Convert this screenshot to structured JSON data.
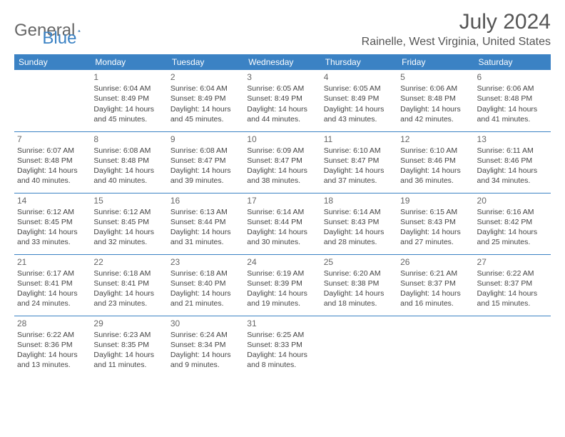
{
  "logo": {
    "general": "General",
    "blue": "Blue"
  },
  "title": "July 2024",
  "location": "Rainelle, West Virginia, United States",
  "colors": {
    "header_bg": "#3b82c4",
    "header_text": "#ffffff",
    "text": "#444444",
    "border": "#3b82c4",
    "logo_gray": "#666666",
    "logo_blue": "#3b82c4"
  },
  "weekdays": [
    "Sunday",
    "Monday",
    "Tuesday",
    "Wednesday",
    "Thursday",
    "Friday",
    "Saturday"
  ],
  "weeks": [
    [
      null,
      {
        "n": "1",
        "sr": "Sunrise: 6:04 AM",
        "ss": "Sunset: 8:49 PM",
        "d1": "Daylight: 14 hours",
        "d2": "and 45 minutes."
      },
      {
        "n": "2",
        "sr": "Sunrise: 6:04 AM",
        "ss": "Sunset: 8:49 PM",
        "d1": "Daylight: 14 hours",
        "d2": "and 45 minutes."
      },
      {
        "n": "3",
        "sr": "Sunrise: 6:05 AM",
        "ss": "Sunset: 8:49 PM",
        "d1": "Daylight: 14 hours",
        "d2": "and 44 minutes."
      },
      {
        "n": "4",
        "sr": "Sunrise: 6:05 AM",
        "ss": "Sunset: 8:49 PM",
        "d1": "Daylight: 14 hours",
        "d2": "and 43 minutes."
      },
      {
        "n": "5",
        "sr": "Sunrise: 6:06 AM",
        "ss": "Sunset: 8:48 PM",
        "d1": "Daylight: 14 hours",
        "d2": "and 42 minutes."
      },
      {
        "n": "6",
        "sr": "Sunrise: 6:06 AM",
        "ss": "Sunset: 8:48 PM",
        "d1": "Daylight: 14 hours",
        "d2": "and 41 minutes."
      }
    ],
    [
      {
        "n": "7",
        "sr": "Sunrise: 6:07 AM",
        "ss": "Sunset: 8:48 PM",
        "d1": "Daylight: 14 hours",
        "d2": "and 40 minutes."
      },
      {
        "n": "8",
        "sr": "Sunrise: 6:08 AM",
        "ss": "Sunset: 8:48 PM",
        "d1": "Daylight: 14 hours",
        "d2": "and 40 minutes."
      },
      {
        "n": "9",
        "sr": "Sunrise: 6:08 AM",
        "ss": "Sunset: 8:47 PM",
        "d1": "Daylight: 14 hours",
        "d2": "and 39 minutes."
      },
      {
        "n": "10",
        "sr": "Sunrise: 6:09 AM",
        "ss": "Sunset: 8:47 PM",
        "d1": "Daylight: 14 hours",
        "d2": "and 38 minutes."
      },
      {
        "n": "11",
        "sr": "Sunrise: 6:10 AM",
        "ss": "Sunset: 8:47 PM",
        "d1": "Daylight: 14 hours",
        "d2": "and 37 minutes."
      },
      {
        "n": "12",
        "sr": "Sunrise: 6:10 AM",
        "ss": "Sunset: 8:46 PM",
        "d1": "Daylight: 14 hours",
        "d2": "and 36 minutes."
      },
      {
        "n": "13",
        "sr": "Sunrise: 6:11 AM",
        "ss": "Sunset: 8:46 PM",
        "d1": "Daylight: 14 hours",
        "d2": "and 34 minutes."
      }
    ],
    [
      {
        "n": "14",
        "sr": "Sunrise: 6:12 AM",
        "ss": "Sunset: 8:45 PM",
        "d1": "Daylight: 14 hours",
        "d2": "and 33 minutes."
      },
      {
        "n": "15",
        "sr": "Sunrise: 6:12 AM",
        "ss": "Sunset: 8:45 PM",
        "d1": "Daylight: 14 hours",
        "d2": "and 32 minutes."
      },
      {
        "n": "16",
        "sr": "Sunrise: 6:13 AM",
        "ss": "Sunset: 8:44 PM",
        "d1": "Daylight: 14 hours",
        "d2": "and 31 minutes."
      },
      {
        "n": "17",
        "sr": "Sunrise: 6:14 AM",
        "ss": "Sunset: 8:44 PM",
        "d1": "Daylight: 14 hours",
        "d2": "and 30 minutes."
      },
      {
        "n": "18",
        "sr": "Sunrise: 6:14 AM",
        "ss": "Sunset: 8:43 PM",
        "d1": "Daylight: 14 hours",
        "d2": "and 28 minutes."
      },
      {
        "n": "19",
        "sr": "Sunrise: 6:15 AM",
        "ss": "Sunset: 8:43 PM",
        "d1": "Daylight: 14 hours",
        "d2": "and 27 minutes."
      },
      {
        "n": "20",
        "sr": "Sunrise: 6:16 AM",
        "ss": "Sunset: 8:42 PM",
        "d1": "Daylight: 14 hours",
        "d2": "and 25 minutes."
      }
    ],
    [
      {
        "n": "21",
        "sr": "Sunrise: 6:17 AM",
        "ss": "Sunset: 8:41 PM",
        "d1": "Daylight: 14 hours",
        "d2": "and 24 minutes."
      },
      {
        "n": "22",
        "sr": "Sunrise: 6:18 AM",
        "ss": "Sunset: 8:41 PM",
        "d1": "Daylight: 14 hours",
        "d2": "and 23 minutes."
      },
      {
        "n": "23",
        "sr": "Sunrise: 6:18 AM",
        "ss": "Sunset: 8:40 PM",
        "d1": "Daylight: 14 hours",
        "d2": "and 21 minutes."
      },
      {
        "n": "24",
        "sr": "Sunrise: 6:19 AM",
        "ss": "Sunset: 8:39 PM",
        "d1": "Daylight: 14 hours",
        "d2": "and 19 minutes."
      },
      {
        "n": "25",
        "sr": "Sunrise: 6:20 AM",
        "ss": "Sunset: 8:38 PM",
        "d1": "Daylight: 14 hours",
        "d2": "and 18 minutes."
      },
      {
        "n": "26",
        "sr": "Sunrise: 6:21 AM",
        "ss": "Sunset: 8:37 PM",
        "d1": "Daylight: 14 hours",
        "d2": "and 16 minutes."
      },
      {
        "n": "27",
        "sr": "Sunrise: 6:22 AM",
        "ss": "Sunset: 8:37 PM",
        "d1": "Daylight: 14 hours",
        "d2": "and 15 minutes."
      }
    ],
    [
      {
        "n": "28",
        "sr": "Sunrise: 6:22 AM",
        "ss": "Sunset: 8:36 PM",
        "d1": "Daylight: 14 hours",
        "d2": "and 13 minutes."
      },
      {
        "n": "29",
        "sr": "Sunrise: 6:23 AM",
        "ss": "Sunset: 8:35 PM",
        "d1": "Daylight: 14 hours",
        "d2": "and 11 minutes."
      },
      {
        "n": "30",
        "sr": "Sunrise: 6:24 AM",
        "ss": "Sunset: 8:34 PM",
        "d1": "Daylight: 14 hours",
        "d2": "and 9 minutes."
      },
      {
        "n": "31",
        "sr": "Sunrise: 6:25 AM",
        "ss": "Sunset: 8:33 PM",
        "d1": "Daylight: 14 hours",
        "d2": "and 8 minutes."
      },
      null,
      null,
      null
    ]
  ]
}
